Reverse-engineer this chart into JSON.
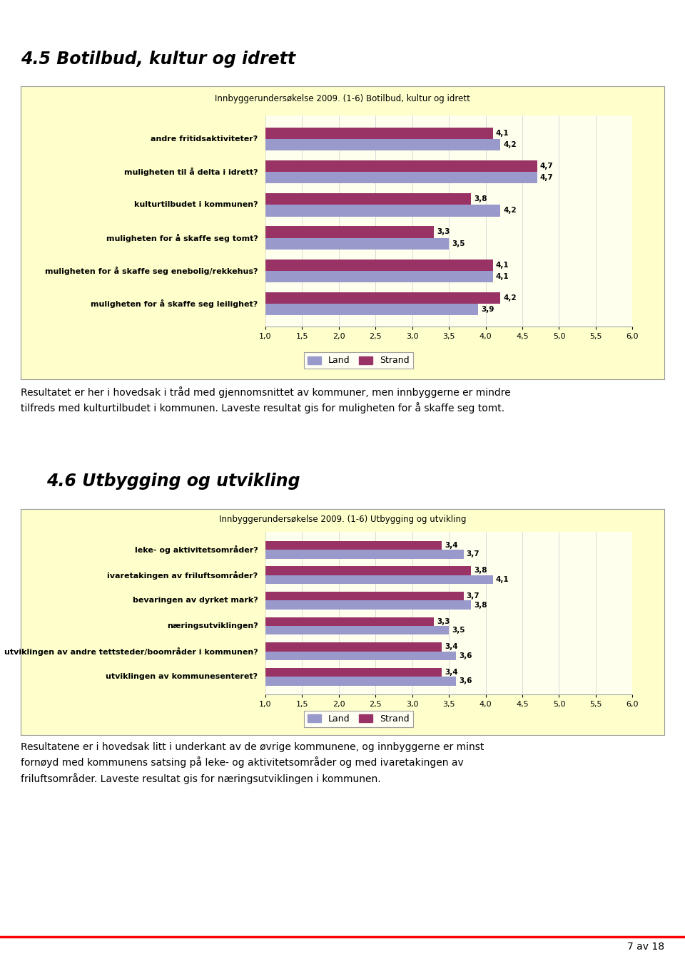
{
  "section1_title": "4.5 Botilbud, kultur og idrett",
  "chart1_title": "Innbyggerundersøkelse 2009. (1-6) Botilbud, kultur og idrett",
  "chart1_categories": [
    "andre fritidsaktiviteter?",
    "muligheten til å delta i idrett?",
    "kulturtilbudet i kommunen?",
    "muligheten for å skaffe seg tomt?",
    "muligheten for å skaffe seg enebolig/rekkehus?",
    "muligheten for å skaffe seg leilighet?"
  ],
  "chart1_land": [
    4.2,
    4.7,
    4.2,
    3.5,
    4.1,
    3.9
  ],
  "chart1_strand": [
    4.1,
    4.7,
    3.8,
    3.3,
    4.1,
    4.2
  ],
  "chart1_text": "Resultatet er her i hovedsak i tråd med gjennomsnittet av kommuner, men innbyggerne er mindre\ntilfreds med kulturtilbudet i kommunen. Laveste resultat gis for muligheten for å skaffe seg tomt.",
  "section2_title": "4.6 Utbygging og utvikling",
  "chart2_title": "Innbyggerundersøkelse 2009. (1-6) Utbygging og utvikling",
  "chart2_categories": [
    "leke- og aktivitetsområder?",
    "ivaretakingen av friluftsområder?",
    "bevaringen av dyrket mark?",
    "næringsutviklingen?",
    "utviklingen av andre tettsteder/boområder i kommunen?",
    "utviklingen av kommunesenteret?"
  ],
  "chart2_land": [
    3.7,
    4.1,
    3.8,
    3.5,
    3.6,
    3.6
  ],
  "chart2_strand": [
    3.4,
    3.8,
    3.7,
    3.3,
    3.4,
    3.4
  ],
  "chart2_text": "Resultatene er i hovedsak litt i underkant av de øvrige kommunene, og innbyggerne er minst\nfornøyd med kommunens satsing på leke- og aktivitetsområder og med ivaretakingen av\nfriluftsområder. Laveste resultat gis for næringsutviklingen i kommunen.",
  "color_land": "#9999CC",
  "color_strand": "#993366",
  "bg_outer": "#FFFFCC",
  "bg_plot": "#FFFFEE",
  "xlim": [
    1.0,
    6.0
  ],
  "xticks": [
    1.0,
    1.5,
    2.0,
    2.5,
    3.0,
    3.5,
    4.0,
    4.5,
    5.0,
    5.5,
    6.0
  ],
  "page_footer": "7 av 18",
  "bar_height": 0.35
}
